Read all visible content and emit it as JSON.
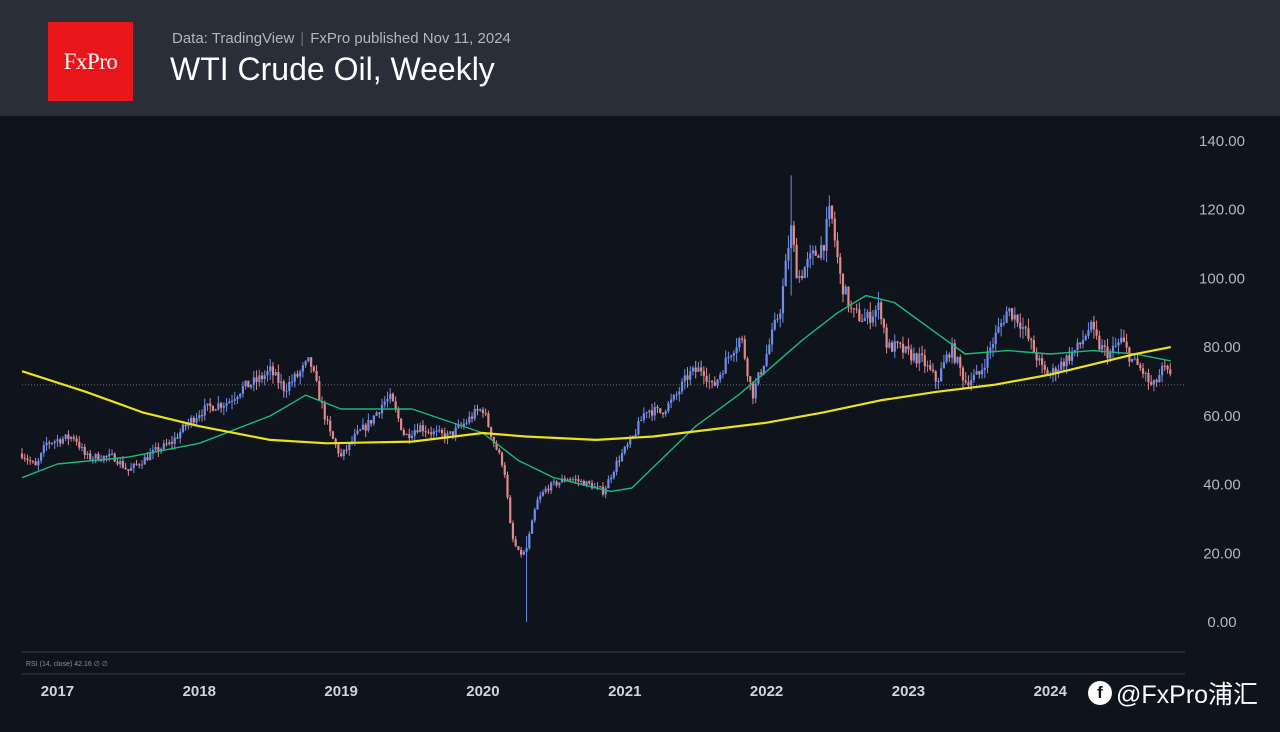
{
  "header": {
    "data_source": "Data: TradingView",
    "publisher": "FxPro published Nov 11, 2024",
    "title": "WTI Crude Oil, Weekly",
    "logo_text": "FxPro"
  },
  "indicator_label": "RSI (14, close)  42.16  ∅  ∅",
  "watermark": {
    "icon": "facebook-circle-icon",
    "text": "@FxPro浦汇"
  },
  "colors": {
    "background": "#0f131c",
    "header": "#2a2e39",
    "logo": "#e8151b",
    "up_candle": "#6f8ee8",
    "down_candle": "#e08a8a",
    "ma_fast": "#1db87a",
    "ma_slow": "#ece21c"
  },
  "chart_data": {
    "type": "candlestick",
    "interval": "weekly",
    "y_axis": {
      "ticks": [
        "140.00",
        "120.00",
        "100.00",
        "80.00",
        "60.00",
        "40.00",
        "20.00",
        "0.00"
      ],
      "range": [
        0,
        140
      ],
      "position": "right"
    },
    "x_axis": {
      "tick_labels": [
        "2017",
        "2018",
        "2019",
        "2020",
        "2021",
        "2022",
        "2023",
        "2024"
      ],
      "tick_positions": [
        2017.0,
        2018.0,
        2019.0,
        2020.0,
        2021.0,
        2022.0,
        2023.0,
        2024.0
      ],
      "range": [
        2016.75,
        2024.95
      ]
    },
    "price_line": 69,
    "close_path": [
      [
        2016.75,
        49
      ],
      [
        2016.85,
        45
      ],
      [
        2016.92,
        52
      ],
      [
        2017.0,
        53
      ],
      [
        2017.12,
        54
      ],
      [
        2017.2,
        48
      ],
      [
        2017.4,
        48
      ],
      [
        2017.5,
        44
      ],
      [
        2017.6,
        47
      ],
      [
        2017.7,
        50
      ],
      [
        2017.8,
        52
      ],
      [
        2017.9,
        57
      ],
      [
        2018.0,
        61
      ],
      [
        2018.1,
        63
      ],
      [
        2018.2,
        64
      ],
      [
        2018.3,
        68
      ],
      [
        2018.4,
        70
      ],
      [
        2018.5,
        73
      ],
      [
        2018.6,
        68
      ],
      [
        2018.7,
        72
      ],
      [
        2018.78,
        76
      ],
      [
        2018.85,
        65
      ],
      [
        2018.92,
        55
      ],
      [
        2019.0,
        48
      ],
      [
        2019.1,
        54
      ],
      [
        2019.2,
        58
      ],
      [
        2019.3,
        64
      ],
      [
        2019.35,
        65
      ],
      [
        2019.45,
        54
      ],
      [
        2019.55,
        57
      ],
      [
        2019.65,
        55
      ],
      [
        2019.75,
        54
      ],
      [
        2019.85,
        57
      ],
      [
        2019.95,
        61
      ],
      [
        2020.0,
        62
      ],
      [
        2020.08,
        52
      ],
      [
        2020.15,
        45
      ],
      [
        2020.2,
        25
      ],
      [
        2020.25,
        20
      ],
      [
        2020.3,
        20
      ],
      [
        2020.38,
        35
      ],
      [
        2020.45,
        39
      ],
      [
        2020.6,
        42
      ],
      [
        2020.75,
        40
      ],
      [
        2020.85,
        38
      ],
      [
        2020.95,
        47
      ],
      [
        2021.05,
        53
      ],
      [
        2021.15,
        62
      ],
      [
        2021.25,
        61
      ],
      [
        2021.35,
        65
      ],
      [
        2021.45,
        72
      ],
      [
        2021.55,
        74
      ],
      [
        2021.62,
        68
      ],
      [
        2021.75,
        79
      ],
      [
        2021.82,
        83
      ],
      [
        2021.9,
        66
      ],
      [
        2022.0,
        78
      ],
      [
        2022.1,
        92
      ],
      [
        2022.17,
        115
      ],
      [
        2022.22,
        100
      ],
      [
        2022.3,
        105
      ],
      [
        2022.4,
        110
      ],
      [
        2022.45,
        120
      ],
      [
        2022.52,
        100
      ],
      [
        2022.6,
        90
      ],
      [
        2022.7,
        88
      ],
      [
        2022.8,
        92
      ],
      [
        2022.85,
        80
      ],
      [
        2022.92,
        80
      ],
      [
        2023.0,
        78
      ],
      [
        2023.1,
        76
      ],
      [
        2023.2,
        70
      ],
      [
        2023.3,
        80
      ],
      [
        2023.4,
        70
      ],
      [
        2023.5,
        72
      ],
      [
        2023.6,
        82
      ],
      [
        2023.7,
        91
      ],
      [
        2023.78,
        88
      ],
      [
        2023.85,
        82
      ],
      [
        2023.95,
        73
      ],
      [
        2024.0,
        72
      ],
      [
        2024.1,
        76
      ],
      [
        2024.2,
        80
      ],
      [
        2024.28,
        86
      ],
      [
        2024.35,
        80
      ],
      [
        2024.42,
        78
      ],
      [
        2024.5,
        82
      ],
      [
        2024.58,
        76
      ],
      [
        2024.65,
        73
      ],
      [
        2024.72,
        68
      ],
      [
        2024.8,
        74
      ],
      [
        2024.86,
        70
      ]
    ],
    "extremes": [
      {
        "x": 2022.18,
        "high": 130,
        "low": 95
      },
      {
        "x": 2020.3,
        "high": 25,
        "low": 0
      }
    ],
    "series": [
      {
        "style": "moving-average-fast",
        "color": "#1db87a",
        "points": [
          [
            2016.75,
            42
          ],
          [
            2017.0,
            46
          ],
          [
            2017.5,
            48
          ],
          [
            2018.0,
            52
          ],
          [
            2018.5,
            60
          ],
          [
            2018.75,
            66
          ],
          [
            2019.0,
            62
          ],
          [
            2019.5,
            62
          ],
          [
            2020.0,
            55
          ],
          [
            2020.25,
            47
          ],
          [
            2020.5,
            42
          ],
          [
            2020.9,
            38
          ],
          [
            2021.05,
            39
          ],
          [
            2021.2,
            45
          ],
          [
            2021.5,
            57
          ],
          [
            2021.8,
            66
          ],
          [
            2022.0,
            73
          ],
          [
            2022.25,
            82
          ],
          [
            2022.5,
            90
          ],
          [
            2022.7,
            95
          ],
          [
            2022.9,
            93
          ],
          [
            2023.2,
            84
          ],
          [
            2023.4,
            78
          ],
          [
            2023.7,
            79
          ],
          [
            2024.0,
            78
          ],
          [
            2024.3,
            79
          ],
          [
            2024.6,
            78
          ],
          [
            2024.85,
            76
          ]
        ]
      },
      {
        "style": "moving-average-slow",
        "color": "#ece21c",
        "points": [
          [
            2016.75,
            73
          ],
          [
            2017.2,
            67
          ],
          [
            2017.6,
            61
          ],
          [
            2018.0,
            57
          ],
          [
            2018.5,
            53
          ],
          [
            2018.9,
            52
          ],
          [
            2019.5,
            52.5
          ],
          [
            2020.0,
            55
          ],
          [
            2020.3,
            54
          ],
          [
            2020.8,
            53
          ],
          [
            2021.2,
            54
          ],
          [
            2021.6,
            56
          ],
          [
            2022.0,
            58
          ],
          [
            2022.4,
            61
          ],
          [
            2022.8,
            64.5
          ],
          [
            2023.2,
            67
          ],
          [
            2023.6,
            69
          ],
          [
            2024.0,
            72
          ],
          [
            2024.3,
            75
          ],
          [
            2024.6,
            78
          ],
          [
            2024.85,
            80
          ]
        ]
      }
    ],
    "grid": false,
    "legend": "none"
  }
}
